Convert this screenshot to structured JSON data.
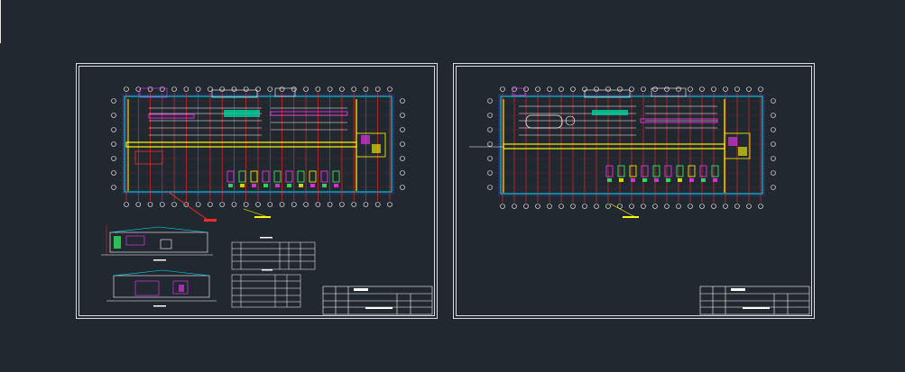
{
  "viewport": {
    "background": "#212830"
  },
  "colors": {
    "sheet_border": "#d8dde3",
    "grid_axis_red": "#ff2a2a",
    "wall_yellow": "#ffff00",
    "dimension_cyan": "#00e5ff",
    "bubble_white": "#ffffff",
    "equipment_magenta": "#ff33ff",
    "equipment_green": "#33ff66",
    "hatch_blue": "#3355ff"
  },
  "sheets": [
    {
      "id": "sheet-1",
      "title": "",
      "has_elevations": true,
      "has_schedule_tables": true,
      "title_block": {
        "rows": 4
      }
    },
    {
      "id": "sheet-2",
      "title": "",
      "has_elevations": false,
      "has_schedule_tables": false,
      "title_block": {
        "rows": 4
      }
    }
  ]
}
